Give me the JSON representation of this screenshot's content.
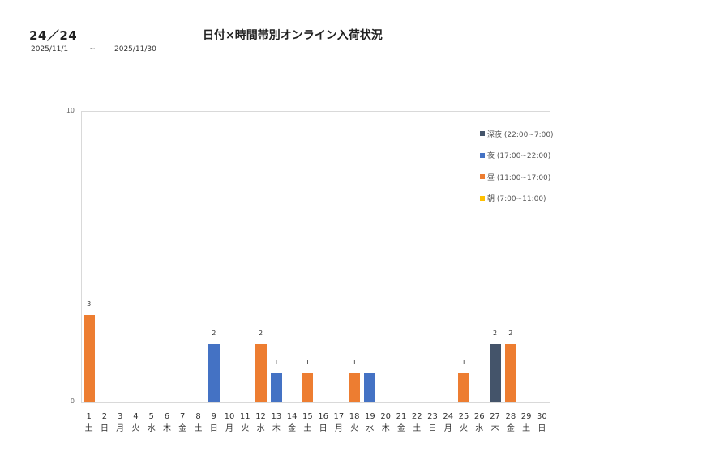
{
  "header": {
    "page_indicator": "24／24",
    "title": "日付×時間帯別オンライン入荷状況",
    "date_from": "2025/11/1",
    "date_sep": "~",
    "date_to": "2025/11/30"
  },
  "chart_data": {
    "type": "bar",
    "stacked": true,
    "title": "日付×時間帯別オンライン入荷状況",
    "xlabel": "",
    "ylabel": "",
    "ylim": [
      0,
      10
    ],
    "yticks": [
      0,
      10
    ],
    "grid": false,
    "legend_position": "right-inside-top",
    "categories": [
      "1",
      "2",
      "3",
      "4",
      "5",
      "6",
      "7",
      "8",
      "9",
      "10",
      "11",
      "12",
      "13",
      "14",
      "15",
      "16",
      "17",
      "18",
      "19",
      "20",
      "21",
      "22",
      "23",
      "24",
      "25",
      "26",
      "27",
      "28",
      "29",
      "30"
    ],
    "weekdays": [
      "土",
      "日",
      "月",
      "火",
      "水",
      "木",
      "金",
      "土",
      "日",
      "月",
      "火",
      "水",
      "木",
      "金",
      "土",
      "日",
      "月",
      "火",
      "水",
      "木",
      "金",
      "土",
      "日",
      "月",
      "火",
      "水",
      "木",
      "金",
      "土",
      "日"
    ],
    "series": [
      {
        "name": "深夜 (22:00~7:00)",
        "color": "#44546A",
        "values": [
          0,
          0,
          0,
          0,
          0,
          0,
          0,
          0,
          0,
          0,
          0,
          0,
          0,
          0,
          0,
          0,
          0,
          0,
          0,
          0,
          0,
          0,
          0,
          0,
          0,
          0,
          2,
          0,
          0,
          0
        ]
      },
      {
        "name": "夜 (17:00~22:00)",
        "color": "#4472C4",
        "values": [
          0,
          0,
          0,
          0,
          0,
          0,
          0,
          0,
          2,
          0,
          0,
          0,
          1,
          0,
          0,
          0,
          0,
          0,
          1,
          0,
          0,
          0,
          0,
          0,
          0,
          0,
          0,
          0,
          0,
          0
        ]
      },
      {
        "name": "昼 (11:00~17:00)",
        "color": "#ED7D31",
        "values": [
          3,
          0,
          0,
          0,
          0,
          0,
          0,
          0,
          0,
          0,
          0,
          2,
          0,
          0,
          1,
          0,
          0,
          1,
          0,
          0,
          0,
          0,
          0,
          0,
          1,
          0,
          0,
          2,
          0,
          0
        ]
      },
      {
        "name": "朝 (7:00~11:00)",
        "color": "#FFC000",
        "values": [
          0,
          0,
          0,
          0,
          0,
          0,
          0,
          0,
          0,
          0,
          0,
          0,
          0,
          0,
          0,
          0,
          0,
          0,
          0,
          0,
          0,
          0,
          0,
          0,
          0,
          0,
          0,
          0,
          0,
          0
        ]
      }
    ],
    "totals": [
      3,
      0,
      0,
      0,
      0,
      0,
      0,
      0,
      2,
      0,
      0,
      2,
      1,
      0,
      1,
      0,
      0,
      1,
      1,
      0,
      0,
      0,
      0,
      0,
      1,
      0,
      2,
      2,
      0,
      0
    ]
  }
}
